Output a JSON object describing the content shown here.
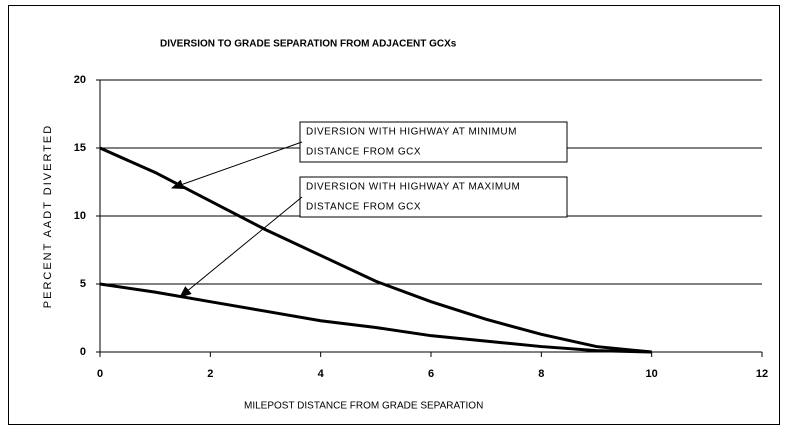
{
  "chart_data": {
    "type": "line",
    "title": "DIVERSION TO GRADE SEPARATION FROM ADJACENT GCXs",
    "x_label": "MILEPOST DISTANCE FROM GRADE SEPARATION",
    "y_label": "PERCENT AADT DIVERTED",
    "x": [
      0,
      1,
      2,
      3,
      4,
      5,
      6,
      7,
      8,
      9,
      10
    ],
    "series": [
      {
        "name": "DIVERSION WITH HIGHWAY AT MINIMUM DISTANCE FROM GCX",
        "color": "#000000",
        "values": [
          15,
          13.2,
          11.1,
          9,
          7.1,
          5.2,
          3.7,
          2.4,
          1.3,
          0.4,
          0
        ]
      },
      {
        "name": "DIVERSION WITH HIGHWAY AT MAXIMUM DISTANCE FROM GCX",
        "color": "#000000",
        "values": [
          5,
          4.4,
          3.7,
          3,
          2.3,
          1.8,
          1.2,
          0.8,
          0.4,
          0.1,
          0
        ]
      }
    ],
    "annotations": [
      {
        "lines": [
          "DIVERSION WITH HIGHWAY AT MINIMUM",
          "DISTANCE FROM GCX"
        ]
      },
      {
        "lines": [
          "DIVERSION WITH HIGHWAY AT MAXIMUM",
          "DISTANCE FROM GCX"
        ]
      }
    ],
    "xlim": [
      0,
      12
    ],
    "ylim": [
      0,
      20
    ],
    "xticks": [
      0,
      2,
      4,
      6,
      8,
      10,
      12
    ],
    "yticks": [
      0,
      5,
      10,
      15,
      20
    ],
    "grid": true
  }
}
